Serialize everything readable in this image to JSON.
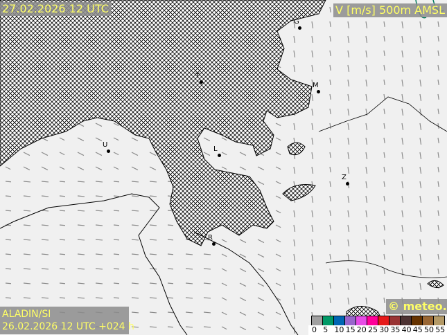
{
  "header": {
    "valid_time": "27.02.2026 12 UTC",
    "field": "V [m/s] 500m AMSL"
  },
  "footer": {
    "model": "ALADIN/SI",
    "run": "26.02.2026 12 UTC +024 h",
    "logo": "© meteo.si"
  },
  "legend": {
    "ticks": [
      "0",
      "5",
      "10",
      "15",
      "20",
      "25",
      "30",
      "35",
      "40",
      "45",
      "50",
      "55"
    ],
    "colors": [
      "#a0a0a0",
      "#009966",
      "#0066b3",
      "#9966cc",
      "#e64ce6",
      "#ff0099",
      "#e61a1a",
      "#993333",
      "#4d3333",
      "#663300",
      "#996633",
      "#b39966"
    ]
  },
  "cities": [
    {
      "label": "G"
    },
    {
      "label": "T"
    },
    {
      "label": "M"
    },
    {
      "label": "U"
    },
    {
      "label": "L"
    },
    {
      "label": "Z"
    },
    {
      "label": "R"
    }
  ]
}
